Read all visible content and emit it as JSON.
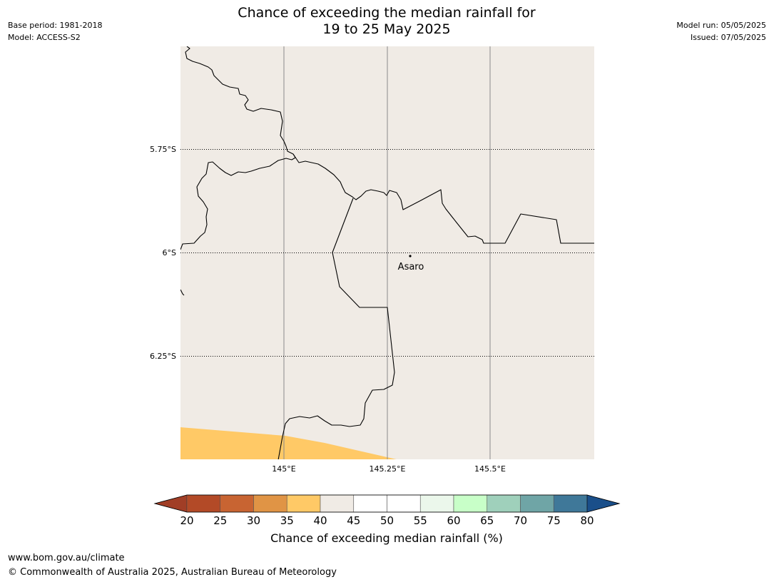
{
  "header": {
    "title_line1": "Chance of exceeding the median rainfall for",
    "title_line2": "19 to 25 May 2025",
    "base_period": "Base period: 1981-2018",
    "model": "Model: ACCESS-S2",
    "model_run": "Model run: 05/05/2025",
    "issued": "Issued: 07/05/2025"
  },
  "map": {
    "lat_labels": [
      "5.75°S",
      "6°S",
      "6.25°S"
    ],
    "lon_labels": [
      "145°E",
      "145.25°E",
      "145.5°E"
    ],
    "place": "Asaro",
    "land_color": "#f0ebe5",
    "low_band_color": "#ffc966"
  },
  "colorbar": {
    "ticks": [
      "20",
      "25",
      "30",
      "35",
      "40",
      "45",
      "50",
      "55",
      "60",
      "65",
      "70",
      "75",
      "80"
    ],
    "colors": [
      "#a13e26",
      "#b34a27",
      "#c86432",
      "#e09445",
      "#ffc966",
      "#f0ebe5",
      "#ffffff",
      "#ffffff",
      "#ebf7eb",
      "#c8ffc8",
      "#9fd0bb",
      "#6fa5a6",
      "#3f7899",
      "#1a4f8a"
    ],
    "label": "Chance of exceeding median rainfall (%)"
  },
  "footer": {
    "url": "www.bom.gov.au/climate",
    "copyright": "© Commonwealth of Australia 2025, Australian Bureau of Meteorology"
  }
}
